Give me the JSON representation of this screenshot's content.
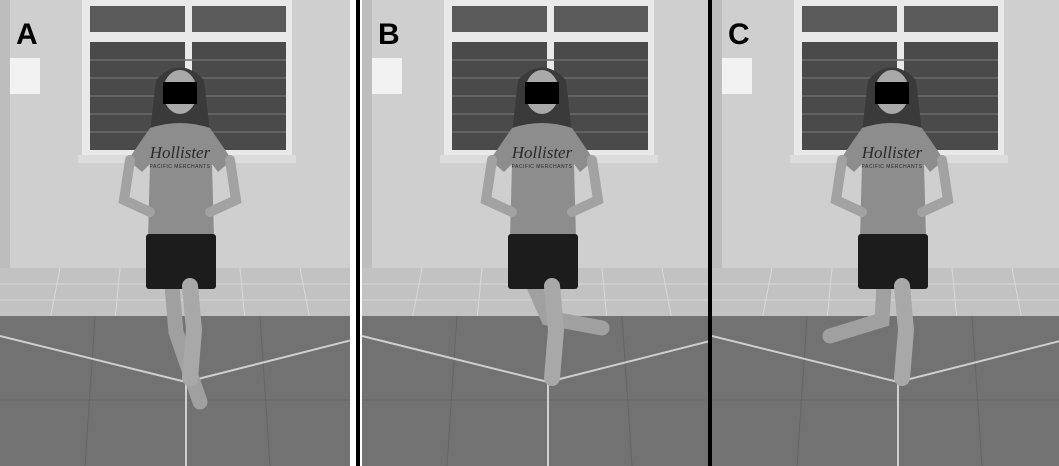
{
  "panels": [
    {
      "label": "A",
      "shirt_brand": "Hollister",
      "shirt_line": "PACIFIC MERCHANTS"
    },
    {
      "label": "B",
      "shirt_brand": "Hollister",
      "shirt_line": "PACIFIC MERCHANTS"
    },
    {
      "label": "C",
      "shirt_brand": "Hollister",
      "shirt_line": "PACIFIC MERCHANTS"
    }
  ]
}
